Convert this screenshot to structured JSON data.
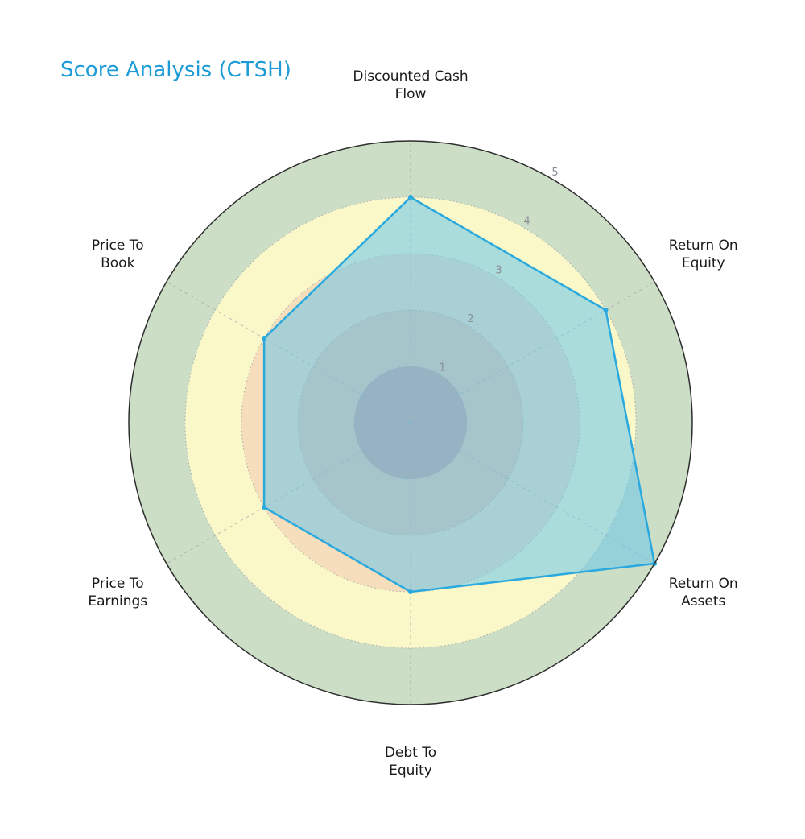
{
  "page": {
    "title": "Score Analysis (CTSH)"
  },
  "chart_data": {
    "type": "radar",
    "title": "Score Analysis (CTSH)",
    "categories": [
      "Discounted Cash Flow",
      "Return On Equity",
      "Return On Assets",
      "Debt To Equity",
      "Price To Earnings",
      "Price To Book"
    ],
    "category_label_lines": [
      [
        "Discounted Cash",
        "Flow"
      ],
      [
        "Return On",
        "Equity"
      ],
      [
        "Return On",
        "Assets"
      ],
      [
        "Debt To",
        "Equity"
      ],
      [
        "Price To",
        "Earnings"
      ],
      [
        "Price To",
        "Book"
      ]
    ],
    "series": [
      {
        "name": "CTSH",
        "values": [
          4,
          4,
          5,
          3,
          3,
          3
        ]
      }
    ],
    "r_ticks": [
      "1",
      "2",
      "3",
      "4",
      "5"
    ],
    "r_max": 5,
    "score_bands": [
      {
        "from": 0,
        "to": 1,
        "color": "#cf9a92"
      },
      {
        "from": 1,
        "to": 2,
        "color": "#eec3a4"
      },
      {
        "from": 2,
        "to": 3,
        "color": "#f6ddbb"
      },
      {
        "from": 3,
        "to": 4,
        "color": "#faf7c9"
      },
      {
        "from": 4,
        "to": 5,
        "color": "#ccdec6"
      }
    ],
    "colors": {
      "title": "#1d9bd6",
      "series_fill": "rgba(105,199,235,0.55)",
      "series_stroke": "#2aa9df",
      "grid": "#9aa0a6",
      "outer_circle": "#2e2e2e",
      "tick_label": "#8a8f94",
      "axis_label": "#1a1a1a"
    },
    "legend_position": "none",
    "grid": "on"
  }
}
